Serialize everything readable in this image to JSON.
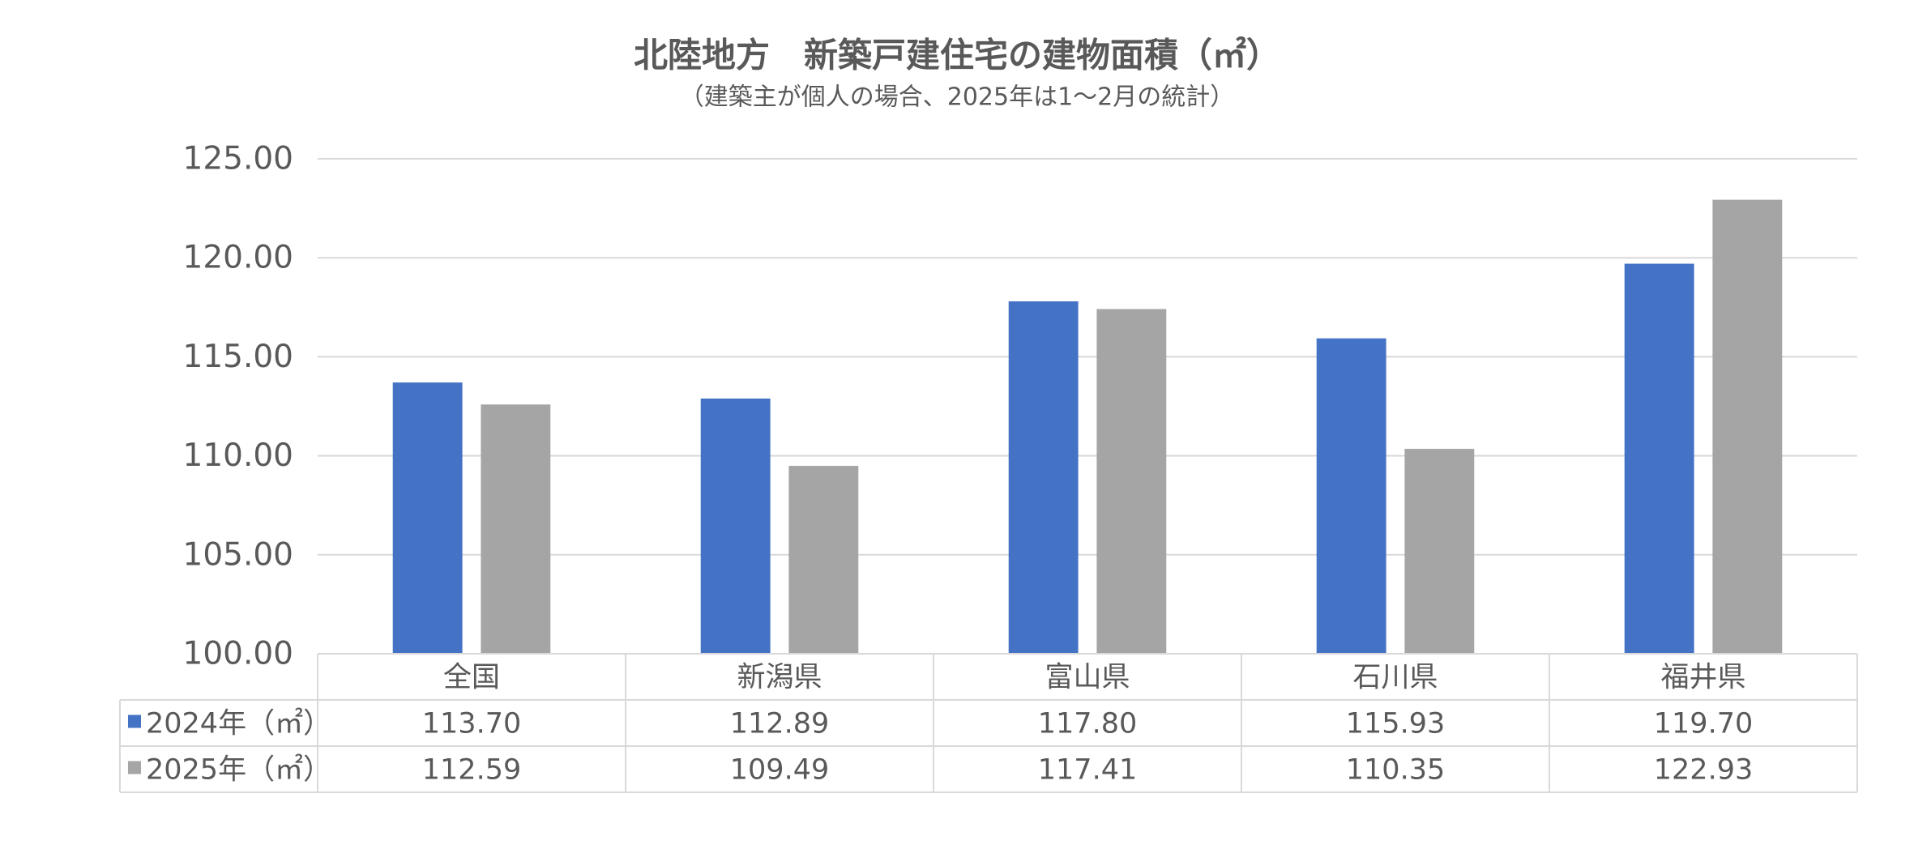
{
  "chart_data": {
    "type": "bar",
    "title": "北陸地方　新築戸建住宅の建物面積（㎡）",
    "subtitle": "（建築主が個人の場合、2025年は1～2月の統計）",
    "categories": [
      "全国",
      "新潟県",
      "富山県",
      "石川県",
      "福井県"
    ],
    "series": [
      {
        "name": "2024年（㎡）",
        "color": "#4472c4",
        "values": [
          113.7,
          112.89,
          117.8,
          115.93,
          119.7
        ],
        "value_labels": [
          "113.70",
          "112.89",
          "117.80",
          "115.93",
          "119.70"
        ]
      },
      {
        "name": "2025年（㎡）",
        "color": "#a5a5a5",
        "values": [
          112.59,
          109.49,
          117.41,
          110.35,
          122.93
        ],
        "value_labels": [
          "112.59",
          "109.49",
          "117.41",
          "110.35",
          "122.93"
        ]
      }
    ],
    "ylim": [
      100,
      125
    ],
    "yticks": [
      {
        "value": 100,
        "label": "100.00"
      },
      {
        "value": 105,
        "label": "105.00"
      },
      {
        "value": 110,
        "label": "110.00"
      },
      {
        "value": 115,
        "label": "115.00"
      },
      {
        "value": 120,
        "label": "120.00"
      },
      {
        "value": 125,
        "label": "125.00"
      }
    ],
    "grid": true,
    "data_table": true
  }
}
